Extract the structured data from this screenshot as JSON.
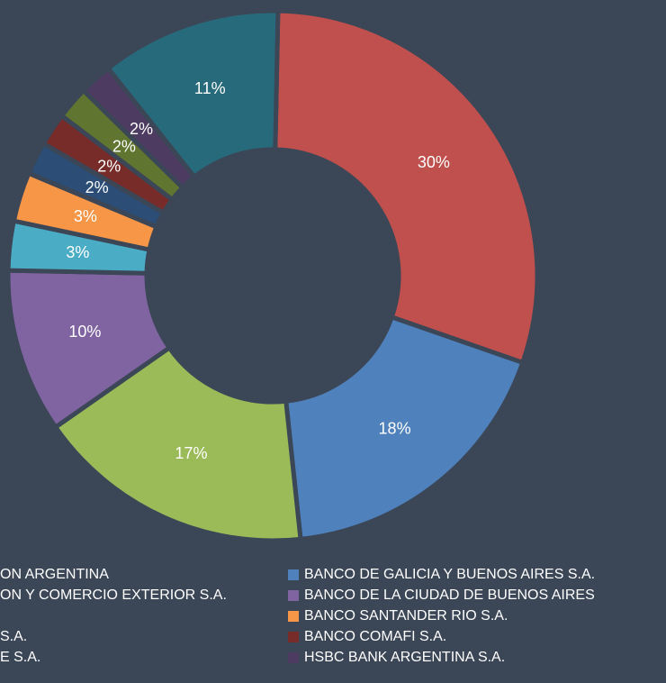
{
  "chart_data": {
    "type": "donut",
    "categories": [
      "ON ARGENTINA",
      "BANCO DE GALICIA Y BUENOS AIRES S.A.",
      "ON Y COMERCIO EXTERIOR S.A.",
      "BANCO DE LA CIUDAD DE BUENOS AIRES",
      null,
      "BANCO SANTANDER RIO S.A.",
      "S.A.",
      "BANCO COMAFI S.A.",
      "E S.A.",
      "HSBC BANK ARGENTINA S.A.",
      null
    ],
    "values": [
      30,
      18,
      17,
      10,
      3,
      3,
      2,
      2,
      2,
      2,
      11
    ],
    "value_labels": [
      "30%",
      "18%",
      "17%",
      "10%",
      "3%",
      "3%",
      "2%",
      "2%",
      "2%",
      "2%",
      "11%"
    ],
    "colors": [
      "#c0504d",
      "#4f81bd",
      "#9bbb59",
      "#8064a2",
      "#4bacc6",
      "#f79646",
      "#2c4d75",
      "#772c2a",
      "#5f7530",
      "#4d3b62",
      "#276a7c"
    ]
  }
}
